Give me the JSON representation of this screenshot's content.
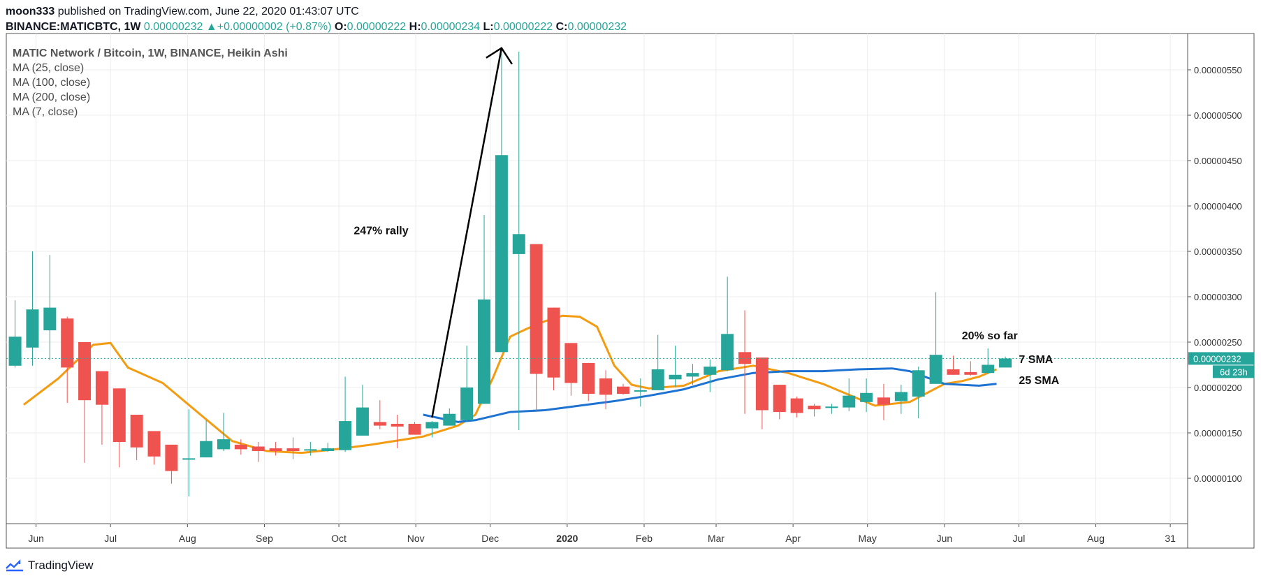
{
  "header": {
    "user": "moon333",
    "published": "published on TradingView.com, June 22, 2020 01:43:07 UTC",
    "symbol": "BINANCE:MATICBTC, 1W",
    "price": "0.00000232",
    "change_arrow": "▲",
    "change": "+0.00000002 (+0.87%)",
    "o_label": "O:",
    "o_value": "0.00000222",
    "h_label": "H:",
    "h_value": "0.00000234",
    "l_label": "L:",
    "l_value": "0.00000222",
    "c_label": "C:",
    "c_value": "0.00000232"
  },
  "legend": {
    "main": "MATIC Network / Bitcoin, 1W, BINANCE, Heikin Ashi",
    "ma1": "MA (25, close)",
    "ma2": "MA (100, close)",
    "ma3": "MA (200, close)",
    "ma4": "MA (7, close)"
  },
  "footer": {
    "brand": "TradingView",
    "logo_icon": "tradingview-logo-icon"
  },
  "colors": {
    "up": "#26a69a",
    "down": "#ef5350",
    "ma7": "#f39c12",
    "ma25": "#1e73d2",
    "grid": "#ececec"
  },
  "chart_data": {
    "type": "candlestick",
    "chart_style": "Heikin Ashi",
    "interval": "1W",
    "y_unit": "BTC",
    "ylim": [
      5e-07,
      5.9e-06
    ],
    "y_ticks": [
      1e-06,
      1.5e-06,
      2e-06,
      2.5e-06,
      3e-06,
      3.5e-06,
      4e-06,
      4.5e-06,
      5e-06,
      5.5e-06
    ],
    "y_tick_labels": [
      "0.00000100",
      "0.00000150",
      "0.00000200",
      "0.00000250",
      "0.00000300",
      "0.00000350",
      "0.00000400",
      "0.00000450",
      "0.00000500",
      "0.00000550"
    ],
    "x_labels": [
      {
        "text": "Jun",
        "date": "2019-06-01"
      },
      {
        "text": "Jul",
        "date": "2019-07-01"
      },
      {
        "text": "Aug",
        "date": "2019-08-01"
      },
      {
        "text": "Sep",
        "date": "2019-09-01"
      },
      {
        "text": "Oct",
        "date": "2019-10-01"
      },
      {
        "text": "Nov",
        "date": "2019-11-01"
      },
      {
        "text": "Dec",
        "date": "2019-12-01"
      },
      {
        "text": "2020",
        "date": "2020-01-01"
      },
      {
        "text": "Feb",
        "date": "2020-02-01"
      },
      {
        "text": "Mar",
        "date": "2020-03-01"
      },
      {
        "text": "Apr",
        "date": "2020-04-01"
      },
      {
        "text": "May",
        "date": "2020-05-01"
      },
      {
        "text": "Jun",
        "date": "2020-06-01"
      },
      {
        "text": "Jul",
        "date": "2020-07-01"
      },
      {
        "text": "Aug",
        "date": "2020-08-01"
      },
      {
        "text": "31",
        "date": "2020-08-31"
      }
    ],
    "candles": [
      {
        "date": "2019-05-20",
        "o": 2.24e-06,
        "h": 2.96e-06,
        "l": 2.22e-06,
        "c": 2.56e-06
      },
      {
        "date": "2019-05-27",
        "o": 2.44e-06,
        "h": 3.5e-06,
        "l": 2.24e-06,
        "c": 2.86e-06
      },
      {
        "date": "2019-06-03",
        "o": 2.63e-06,
        "h": 3.46e-06,
        "l": 2.3e-06,
        "c": 2.88e-06
      },
      {
        "date": "2019-06-10",
        "o": 2.76e-06,
        "h": 2.78e-06,
        "l": 1.83e-06,
        "c": 2.22e-06
      },
      {
        "date": "2019-06-17",
        "o": 2.5e-06,
        "h": 2.5e-06,
        "l": 1.17e-06,
        "c": 1.86e-06
      },
      {
        "date": "2019-06-24",
        "o": 2.18e-06,
        "h": 2.18e-06,
        "l": 1.37e-06,
        "c": 1.81e-06
      },
      {
        "date": "2019-07-01",
        "o": 1.99e-06,
        "h": 1.99e-06,
        "l": 1.12e-06,
        "c": 1.4e-06
      },
      {
        "date": "2019-07-08",
        "o": 1.7e-06,
        "h": 1.7e-06,
        "l": 1.2e-06,
        "c": 1.34e-06
      },
      {
        "date": "2019-07-15",
        "o": 1.52e-06,
        "h": 1.52e-06,
        "l": 1.15e-06,
        "c": 1.24e-06
      },
      {
        "date": "2019-07-22",
        "o": 1.37e-06,
        "h": 1.37e-06,
        "l": 9.4e-07,
        "c": 1.08e-06
      },
      {
        "date": "2019-07-29",
        "o": 1.22e-06,
        "h": 1.76e-06,
        "l": 8e-07,
        "c": 1.22e-06
      },
      {
        "date": "2019-08-05",
        "o": 1.23e-06,
        "h": 1.64e-06,
        "l": 1.23e-06,
        "c": 1.41e-06
      },
      {
        "date": "2019-08-12",
        "o": 1.32e-06,
        "h": 1.72e-06,
        "l": 1.3e-06,
        "c": 1.43e-06
      },
      {
        "date": "2019-08-19",
        "o": 1.37e-06,
        "h": 1.43e-06,
        "l": 1.26e-06,
        "c": 1.32e-06
      },
      {
        "date": "2019-08-26",
        "o": 1.35e-06,
        "h": 1.4e-06,
        "l": 1.18e-06,
        "c": 1.3e-06
      },
      {
        "date": "2019-09-02",
        "o": 1.33e-06,
        "h": 1.4e-06,
        "l": 1.25e-06,
        "c": 1.3e-06
      },
      {
        "date": "2019-09-09",
        "o": 1.33e-06,
        "h": 1.45e-06,
        "l": 1.21e-06,
        "c": 1.3e-06
      },
      {
        "date": "2019-09-16",
        "o": 1.31e-06,
        "h": 1.4e-06,
        "l": 1.25e-06,
        "c": 1.32e-06
      },
      {
        "date": "2019-09-23",
        "o": 1.3e-06,
        "h": 1.39e-06,
        "l": 1.29e-06,
        "c": 1.33e-06
      },
      {
        "date": "2019-09-30",
        "o": 1.31e-06,
        "h": 2.12e-06,
        "l": 1.29e-06,
        "c": 1.63e-06
      },
      {
        "date": "2019-10-07",
        "o": 1.47e-06,
        "h": 2.03e-06,
        "l": 1.47e-06,
        "c": 1.78e-06
      },
      {
        "date": "2019-10-14",
        "o": 1.62e-06,
        "h": 1.86e-06,
        "l": 1.54e-06,
        "c": 1.58e-06
      },
      {
        "date": "2019-10-21",
        "o": 1.6e-06,
        "h": 1.7e-06,
        "l": 1.33e-06,
        "c": 1.57e-06
      },
      {
        "date": "2019-10-28",
        "o": 1.6e-06,
        "h": 1.62e-06,
        "l": 1.48e-06,
        "c": 1.48e-06
      },
      {
        "date": "2019-11-04",
        "o": 1.55e-06,
        "h": 1.63e-06,
        "l": 1.45e-06,
        "c": 1.62e-06
      },
      {
        "date": "2019-11-11",
        "o": 1.58e-06,
        "h": 1.77e-06,
        "l": 1.58e-06,
        "c": 1.71e-06
      },
      {
        "date": "2019-11-18",
        "o": 1.64e-06,
        "h": 2.46e-06,
        "l": 1.62e-06,
        "c": 2e-06
      },
      {
        "date": "2019-11-25",
        "o": 1.82e-06,
        "h": 3.9e-06,
        "l": 1.82e-06,
        "c": 2.97e-06
      },
      {
        "date": "2019-12-02",
        "o": 2.39e-06,
        "h": 5.68e-06,
        "l": 2.39e-06,
        "c": 4.56e-06
      },
      {
        "date": "2019-12-09",
        "o": 3.47e-06,
        "h": 5.7e-06,
        "l": 1.53e-06,
        "c": 3.69e-06
      },
      {
        "date": "2019-12-16",
        "o": 3.58e-06,
        "h": 3.58e-06,
        "l": 1.73e-06,
        "c": 2.15e-06
      },
      {
        "date": "2019-12-23",
        "o": 2.88e-06,
        "h": 2.88e-06,
        "l": 1.97e-06,
        "c": 2.11e-06
      },
      {
        "date": "2019-12-30",
        "o": 2.49e-06,
        "h": 2.49e-06,
        "l": 1.91e-06,
        "c": 2.05e-06
      },
      {
        "date": "2020-01-06",
        "o": 2.27e-06,
        "h": 2.27e-06,
        "l": 1.85e-06,
        "c": 1.93e-06
      },
      {
        "date": "2020-01-13",
        "o": 2.1e-06,
        "h": 2.19e-06,
        "l": 1.76e-06,
        "c": 1.92e-06
      },
      {
        "date": "2020-01-20",
        "o": 2.01e-06,
        "h": 2.04e-06,
        "l": 1.92e-06,
        "c": 1.93e-06
      },
      {
        "date": "2020-01-27",
        "o": 1.97e-06,
        "h": 2.1e-06,
        "l": 1.79e-06,
        "c": 1.97e-06
      },
      {
        "date": "2020-02-03",
        "o": 1.97e-06,
        "h": 2.58e-06,
        "l": 1.97e-06,
        "c": 2.2e-06
      },
      {
        "date": "2020-02-10",
        "o": 2.09e-06,
        "h": 2.46e-06,
        "l": 2.01e-06,
        "c": 2.14e-06
      },
      {
        "date": "2020-02-17",
        "o": 2.12e-06,
        "h": 2.26e-06,
        "l": 2.03e-06,
        "c": 2.16e-06
      },
      {
        "date": "2020-02-24",
        "o": 2.14e-06,
        "h": 2.31e-06,
        "l": 1.95e-06,
        "c": 2.23e-06
      },
      {
        "date": "2020-03-02",
        "o": 2.19e-06,
        "h": 3.22e-06,
        "l": 2.18e-06,
        "c": 2.59e-06
      },
      {
        "date": "2020-03-09",
        "o": 2.39e-06,
        "h": 2.85e-06,
        "l": 1.71e-06,
        "c": 2.26e-06
      },
      {
        "date": "2020-03-16",
        "o": 2.33e-06,
        "h": 2.33e-06,
        "l": 1.54e-06,
        "c": 1.75e-06
      },
      {
        "date": "2020-03-23",
        "o": 2.03e-06,
        "h": 2.03e-06,
        "l": 1.65e-06,
        "c": 1.73e-06
      },
      {
        "date": "2020-03-30",
        "o": 1.88e-06,
        "h": 1.9e-06,
        "l": 1.67e-06,
        "c": 1.72e-06
      },
      {
        "date": "2020-04-06",
        "o": 1.8e-06,
        "h": 1.82e-06,
        "l": 1.68e-06,
        "c": 1.76e-06
      },
      {
        "date": "2020-04-13",
        "o": 1.78e-06,
        "h": 1.82e-06,
        "l": 1.71e-06,
        "c": 1.79e-06
      },
      {
        "date": "2020-04-20",
        "o": 1.78e-06,
        "h": 2.1e-06,
        "l": 1.74e-06,
        "c": 1.91e-06
      },
      {
        "date": "2020-04-27",
        "o": 1.84e-06,
        "h": 2.1e-06,
        "l": 1.73e-06,
        "c": 1.94e-06
      },
      {
        "date": "2020-05-04",
        "o": 1.89e-06,
        "h": 2.04e-06,
        "l": 1.64e-06,
        "c": 1.81e-06
      },
      {
        "date": "2020-05-11",
        "o": 1.85e-06,
        "h": 2.03e-06,
        "l": 1.71e-06,
        "c": 1.95e-06
      },
      {
        "date": "2020-05-18",
        "o": 1.9e-06,
        "h": 2.23e-06,
        "l": 1.66e-06,
        "c": 2.19e-06
      },
      {
        "date": "2020-05-25",
        "o": 2.04e-06,
        "h": 3.05e-06,
        "l": 2.04e-06,
        "c": 2.36e-06
      },
      {
        "date": "2020-06-01",
        "o": 2.2e-06,
        "h": 2.35e-06,
        "l": 2.14e-06,
        "c": 2.14e-06
      },
      {
        "date": "2020-06-08",
        "o": 2.17e-06,
        "h": 2.29e-06,
        "l": 2.13e-06,
        "c": 2.14e-06
      },
      {
        "date": "2020-06-15",
        "o": 2.16e-06,
        "h": 2.43e-06,
        "l": 2.15e-06,
        "c": 2.25e-06
      },
      {
        "date": "2020-06-22",
        "o": 2.22e-06,
        "h": 2.34e-06,
        "l": 2.22e-06,
        "c": 2.32e-06
      }
    ],
    "series": [
      {
        "legend_label": "7 SMA",
        "style": "line",
        "points": [
          [
            "2019-05-27",
            1.81e-06
          ],
          [
            "2019-06-10",
            2.1e-06
          ],
          [
            "2019-06-24",
            2.47e-06
          ],
          [
            "2019-07-01",
            2.49e-06
          ],
          [
            "2019-07-08",
            2.22e-06
          ],
          [
            "2019-07-22",
            2.05e-06
          ],
          [
            "2019-08-05",
            1.73e-06
          ],
          [
            "2019-08-19",
            1.41e-06
          ],
          [
            "2019-09-02",
            1.3e-06
          ],
          [
            "2019-09-16",
            1.28e-06
          ],
          [
            "2019-09-30",
            1.32e-06
          ],
          [
            "2019-10-14",
            1.37e-06
          ],
          [
            "2019-10-28",
            1.43e-06
          ],
          [
            "2019-11-04",
            1.46e-06
          ],
          [
            "2019-11-18",
            1.58e-06
          ],
          [
            "2019-11-25",
            1.7e-06
          ],
          [
            "2019-12-02",
            2.1e-06
          ],
          [
            "2019-12-09",
            2.56e-06
          ],
          [
            "2019-12-16",
            2.65e-06
          ],
          [
            "2019-12-23",
            2.73e-06
          ],
          [
            "2019-12-30",
            2.79e-06
          ],
          [
            "2020-01-06",
            2.78e-06
          ],
          [
            "2020-01-13",
            2.67e-06
          ],
          [
            "2020-01-20",
            2.24e-06
          ],
          [
            "2020-01-27",
            2.03e-06
          ],
          [
            "2020-02-03",
            1.99e-06
          ],
          [
            "2020-02-17",
            2.02e-06
          ],
          [
            "2020-03-02",
            2.18e-06
          ],
          [
            "2020-03-16",
            2.24e-06
          ],
          [
            "2020-03-30",
            2.16e-06
          ],
          [
            "2020-04-13",
            2.04e-06
          ],
          [
            "2020-04-27",
            1.88e-06
          ],
          [
            "2020-05-04",
            1.8e-06
          ],
          [
            "2020-05-18",
            1.84e-06
          ],
          [
            "2020-06-01",
            2.04e-06
          ],
          [
            "2020-06-08",
            2.07e-06
          ],
          [
            "2020-06-15",
            2.12e-06
          ],
          [
            "2020-06-22",
            2.2e-06
          ]
        ]
      },
      {
        "legend_label": "25 SMA",
        "style": "line",
        "points": [
          [
            "2019-11-04",
            1.7e-06
          ],
          [
            "2019-11-18",
            1.62e-06
          ],
          [
            "2019-11-25",
            1.64e-06
          ],
          [
            "2019-12-09",
            1.73e-06
          ],
          [
            "2019-12-23",
            1.75e-06
          ],
          [
            "2020-01-06",
            1.8e-06
          ],
          [
            "2020-01-20",
            1.85e-06
          ],
          [
            "2020-02-03",
            1.91e-06
          ],
          [
            "2020-02-17",
            1.98e-06
          ],
          [
            "2020-03-02",
            2.09e-06
          ],
          [
            "2020-03-16",
            2.16e-06
          ],
          [
            "2020-03-30",
            2.18e-06
          ],
          [
            "2020-04-13",
            2.18e-06
          ],
          [
            "2020-04-27",
            2.2e-06
          ],
          [
            "2020-05-11",
            2.21e-06
          ],
          [
            "2020-05-18",
            2.18e-06
          ],
          [
            "2020-06-01",
            2.04e-06
          ],
          [
            "2020-06-15",
            2.02e-06
          ],
          [
            "2020-06-22",
            2.04e-06
          ]
        ]
      }
    ],
    "price_line": 2.32e-06,
    "price_label": "0.00000232",
    "countdown": "6d 23h",
    "annotations": [
      {
        "type": "arrow",
        "from": [
          "2019-11-04",
          1.67e-06
        ],
        "to": [
          "2019-12-02",
          5.74e-06
        ]
      },
      {
        "type": "text",
        "text": "247% rally",
        "at": [
          "2019-10-07",
          3.69e-06
        ]
      },
      {
        "type": "text",
        "text": "20% so far",
        "at": [
          "2020-06-08",
          2.53e-06
        ]
      },
      {
        "type": "text",
        "text": "7 SMA",
        "at": [
          "2020-07-01",
          2.27e-06
        ]
      },
      {
        "type": "text",
        "text": "25 SMA",
        "at": [
          "2020-07-01",
          2.04e-06
        ]
      }
    ]
  }
}
